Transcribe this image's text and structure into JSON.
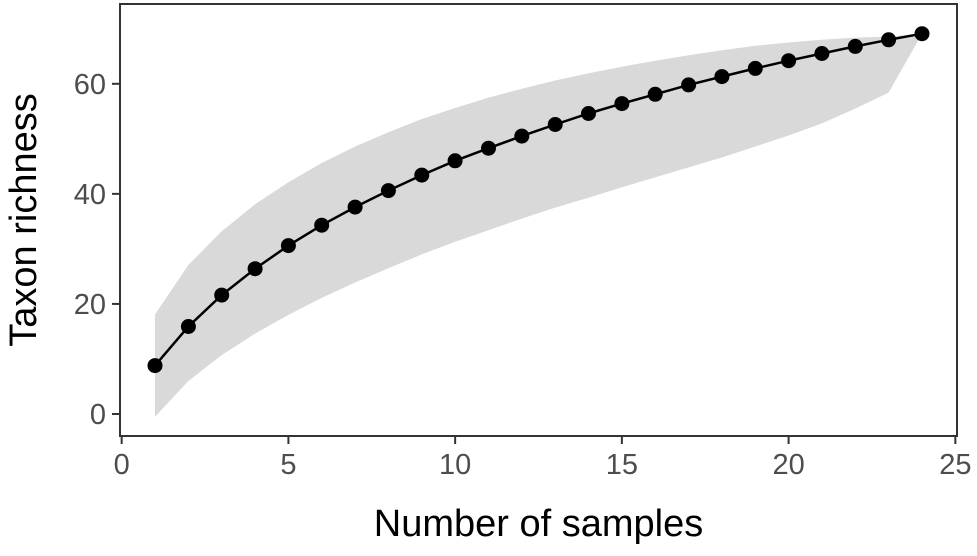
{
  "chart_data": {
    "type": "line",
    "title": "",
    "xlabel": "Number of samples",
    "ylabel": "Taxon richness",
    "xlim": [
      -0.05,
      25.05
    ],
    "ylim": [
      -4,
      74.5
    ],
    "xticks": [
      0,
      5,
      10,
      15,
      20,
      25
    ],
    "yticks": [
      0,
      20,
      40,
      60
    ],
    "grid": false,
    "legend": "none",
    "colors": {
      "line": "#000000",
      "points": "#000000",
      "ribbon": "#d9d9d9",
      "tick_labels": "#4d4d4d",
      "axis": "#333333"
    },
    "series": [
      {
        "x": [
          1,
          2,
          3,
          4,
          5,
          6,
          7,
          8,
          9,
          10,
          11,
          12,
          13,
          14,
          15,
          16,
          17,
          18,
          19,
          20,
          21,
          22,
          23,
          24
        ],
        "values": [
          8.8,
          15.9,
          21.6,
          26.4,
          30.6,
          34.3,
          37.6,
          40.6,
          43.4,
          46.0,
          48.3,
          50.5,
          52.6,
          54.6,
          56.4,
          58.1,
          59.8,
          61.3,
          62.8,
          64.2,
          65.5,
          66.8,
          68.0,
          69.1
        ],
        "lower": [
          -0.5,
          6.0,
          10.7,
          14.6,
          18.0,
          21.1,
          23.9,
          26.5,
          29.0,
          31.3,
          33.4,
          35.5,
          37.5,
          39.3,
          41.2,
          43.0,
          44.8,
          46.6,
          48.6,
          50.6,
          52.8,
          55.5,
          58.4,
          69.1
        ],
        "upper": [
          18.1,
          27.1,
          33.2,
          38.1,
          42.1,
          45.6,
          48.6,
          51.2,
          53.6,
          55.6,
          57.5,
          59.1,
          60.6,
          61.9,
          63.1,
          64.2,
          65.2,
          66.1,
          66.9,
          67.5,
          68.0,
          68.4,
          68.6,
          69.1
        ]
      }
    ]
  }
}
